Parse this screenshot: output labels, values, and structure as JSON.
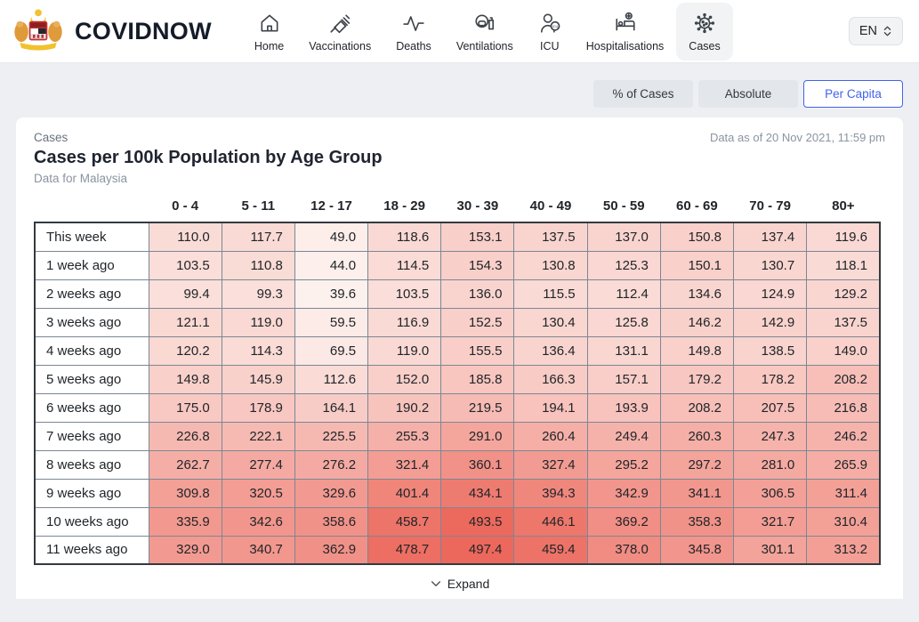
{
  "colors": {
    "accent": "#4263eb",
    "nav_active_bg": "#f1f3f5",
    "page_bg": "#edeff3"
  },
  "header": {
    "brand": "COVIDNOW",
    "nav": [
      {
        "label": "Home",
        "active": false
      },
      {
        "label": "Vaccinations",
        "active": false
      },
      {
        "label": "Deaths",
        "active": false
      },
      {
        "label": "Ventilations",
        "active": false
      },
      {
        "label": "ICU",
        "active": false
      },
      {
        "label": "Hospitalisations",
        "active": false
      },
      {
        "label": "Cases",
        "active": true
      }
    ],
    "language": "EN"
  },
  "view_toggle": [
    {
      "label": "% of Cases",
      "active": false
    },
    {
      "label": "Absolute",
      "active": false
    },
    {
      "label": "Per Capita",
      "active": true
    }
  ],
  "card": {
    "eyebrow": "Cases",
    "data_as_of": "Data as of 20 Nov 2021, 11:59 pm",
    "title": "Cases per 100k Population by Age Group",
    "subtitle": "Data for Malaysia",
    "expand_label": "Expand"
  },
  "chart_data": {
    "type": "heatmap",
    "title": "Cases per 100k Population by Age Group",
    "columns": [
      "0 - 4",
      "5 - 11",
      "12 - 17",
      "18 - 29",
      "30 - 39",
      "40 - 49",
      "50 - 59",
      "60 - 69",
      "70 - 79",
      "80+"
    ],
    "rows": [
      {
        "label": "This week",
        "values": [
          110.0,
          117.7,
          49.0,
          118.6,
          153.1,
          137.5,
          137.0,
          150.8,
          137.4,
          119.6
        ]
      },
      {
        "label": "1 week ago",
        "values": [
          103.5,
          110.8,
          44.0,
          114.5,
          154.3,
          130.8,
          125.3,
          150.1,
          130.7,
          118.1
        ]
      },
      {
        "label": "2 weeks ago",
        "values": [
          99.4,
          99.3,
          39.6,
          103.5,
          136.0,
          115.5,
          112.4,
          134.6,
          124.9,
          129.2
        ]
      },
      {
        "label": "3 weeks ago",
        "values": [
          121.1,
          119.0,
          59.5,
          116.9,
          152.5,
          130.4,
          125.8,
          146.2,
          142.9,
          137.5
        ]
      },
      {
        "label": "4 weeks ago",
        "values": [
          120.2,
          114.3,
          69.5,
          119.0,
          155.5,
          136.4,
          131.1,
          149.8,
          138.5,
          149.0
        ]
      },
      {
        "label": "5 weeks ago",
        "values": [
          149.8,
          145.9,
          112.6,
          152.0,
          185.8,
          166.3,
          157.1,
          179.2,
          178.2,
          208.2
        ]
      },
      {
        "label": "6 weeks ago",
        "values": [
          175.0,
          178.9,
          164.1,
          190.2,
          219.5,
          194.1,
          193.9,
          208.2,
          207.5,
          216.8
        ]
      },
      {
        "label": "7 weeks ago",
        "values": [
          226.8,
          222.1,
          225.5,
          255.3,
          291.0,
          260.4,
          249.4,
          260.3,
          247.3,
          246.2
        ]
      },
      {
        "label": "8 weeks ago",
        "values": [
          262.7,
          277.4,
          276.2,
          321.4,
          360.1,
          327.4,
          295.2,
          297.2,
          281.0,
          265.9
        ]
      },
      {
        "label": "9 weeks ago",
        "values": [
          309.8,
          320.5,
          329.6,
          401.4,
          434.1,
          394.3,
          342.9,
          341.1,
          306.5,
          311.4
        ]
      },
      {
        "label": "10 weeks ago",
        "values": [
          335.9,
          342.6,
          358.6,
          458.7,
          493.5,
          446.1,
          369.2,
          358.3,
          321.7,
          310.4
        ]
      },
      {
        "label": "11 weeks ago",
        "values": [
          329.0,
          340.7,
          362.9,
          478.7,
          497.4,
          459.4,
          378.0,
          345.8,
          301.1,
          313.2
        ]
      }
    ],
    "color_scale": {
      "min_value": 39.6,
      "max_value": 497.4,
      "min_color": "#fdf1ed",
      "max_color": "#ec685c"
    },
    "decimals": 1
  }
}
